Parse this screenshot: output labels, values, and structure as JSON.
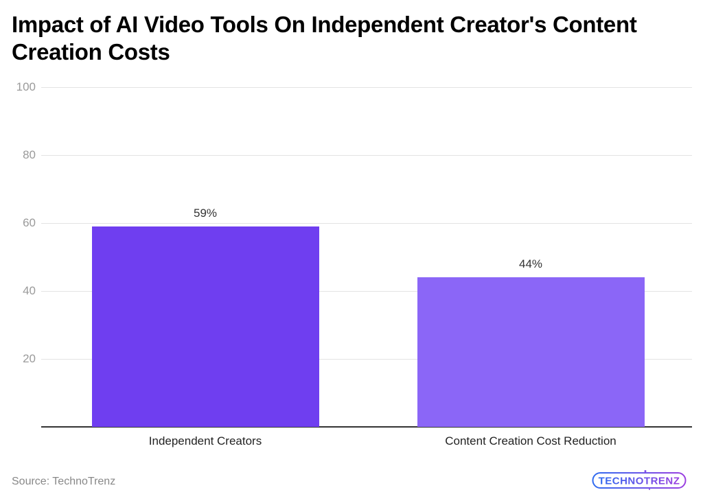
{
  "chart_data": {
    "type": "bar",
    "title": "Impact of AI Video Tools On Independent Creator's Content Creation Costs",
    "categories": [
      "Independent Creators",
      "Content Creation Cost Reduction"
    ],
    "values": [
      59,
      44
    ],
    "value_labels": [
      "59%",
      "44%"
    ],
    "colors": [
      "#6f3ef0",
      "#8b66f7"
    ],
    "xlabel": "",
    "ylabel": "",
    "ylim": [
      0,
      100
    ],
    "yticks": [
      20,
      40,
      60,
      80,
      100
    ],
    "grid": true,
    "legend": "none"
  },
  "header": {
    "title": "Impact of AI Video Tools On Independent Creator's Content Creation Costs"
  },
  "footer": {
    "source": "Source: TechnoTrenz",
    "logo_text": "TECHNOTRENZ"
  }
}
